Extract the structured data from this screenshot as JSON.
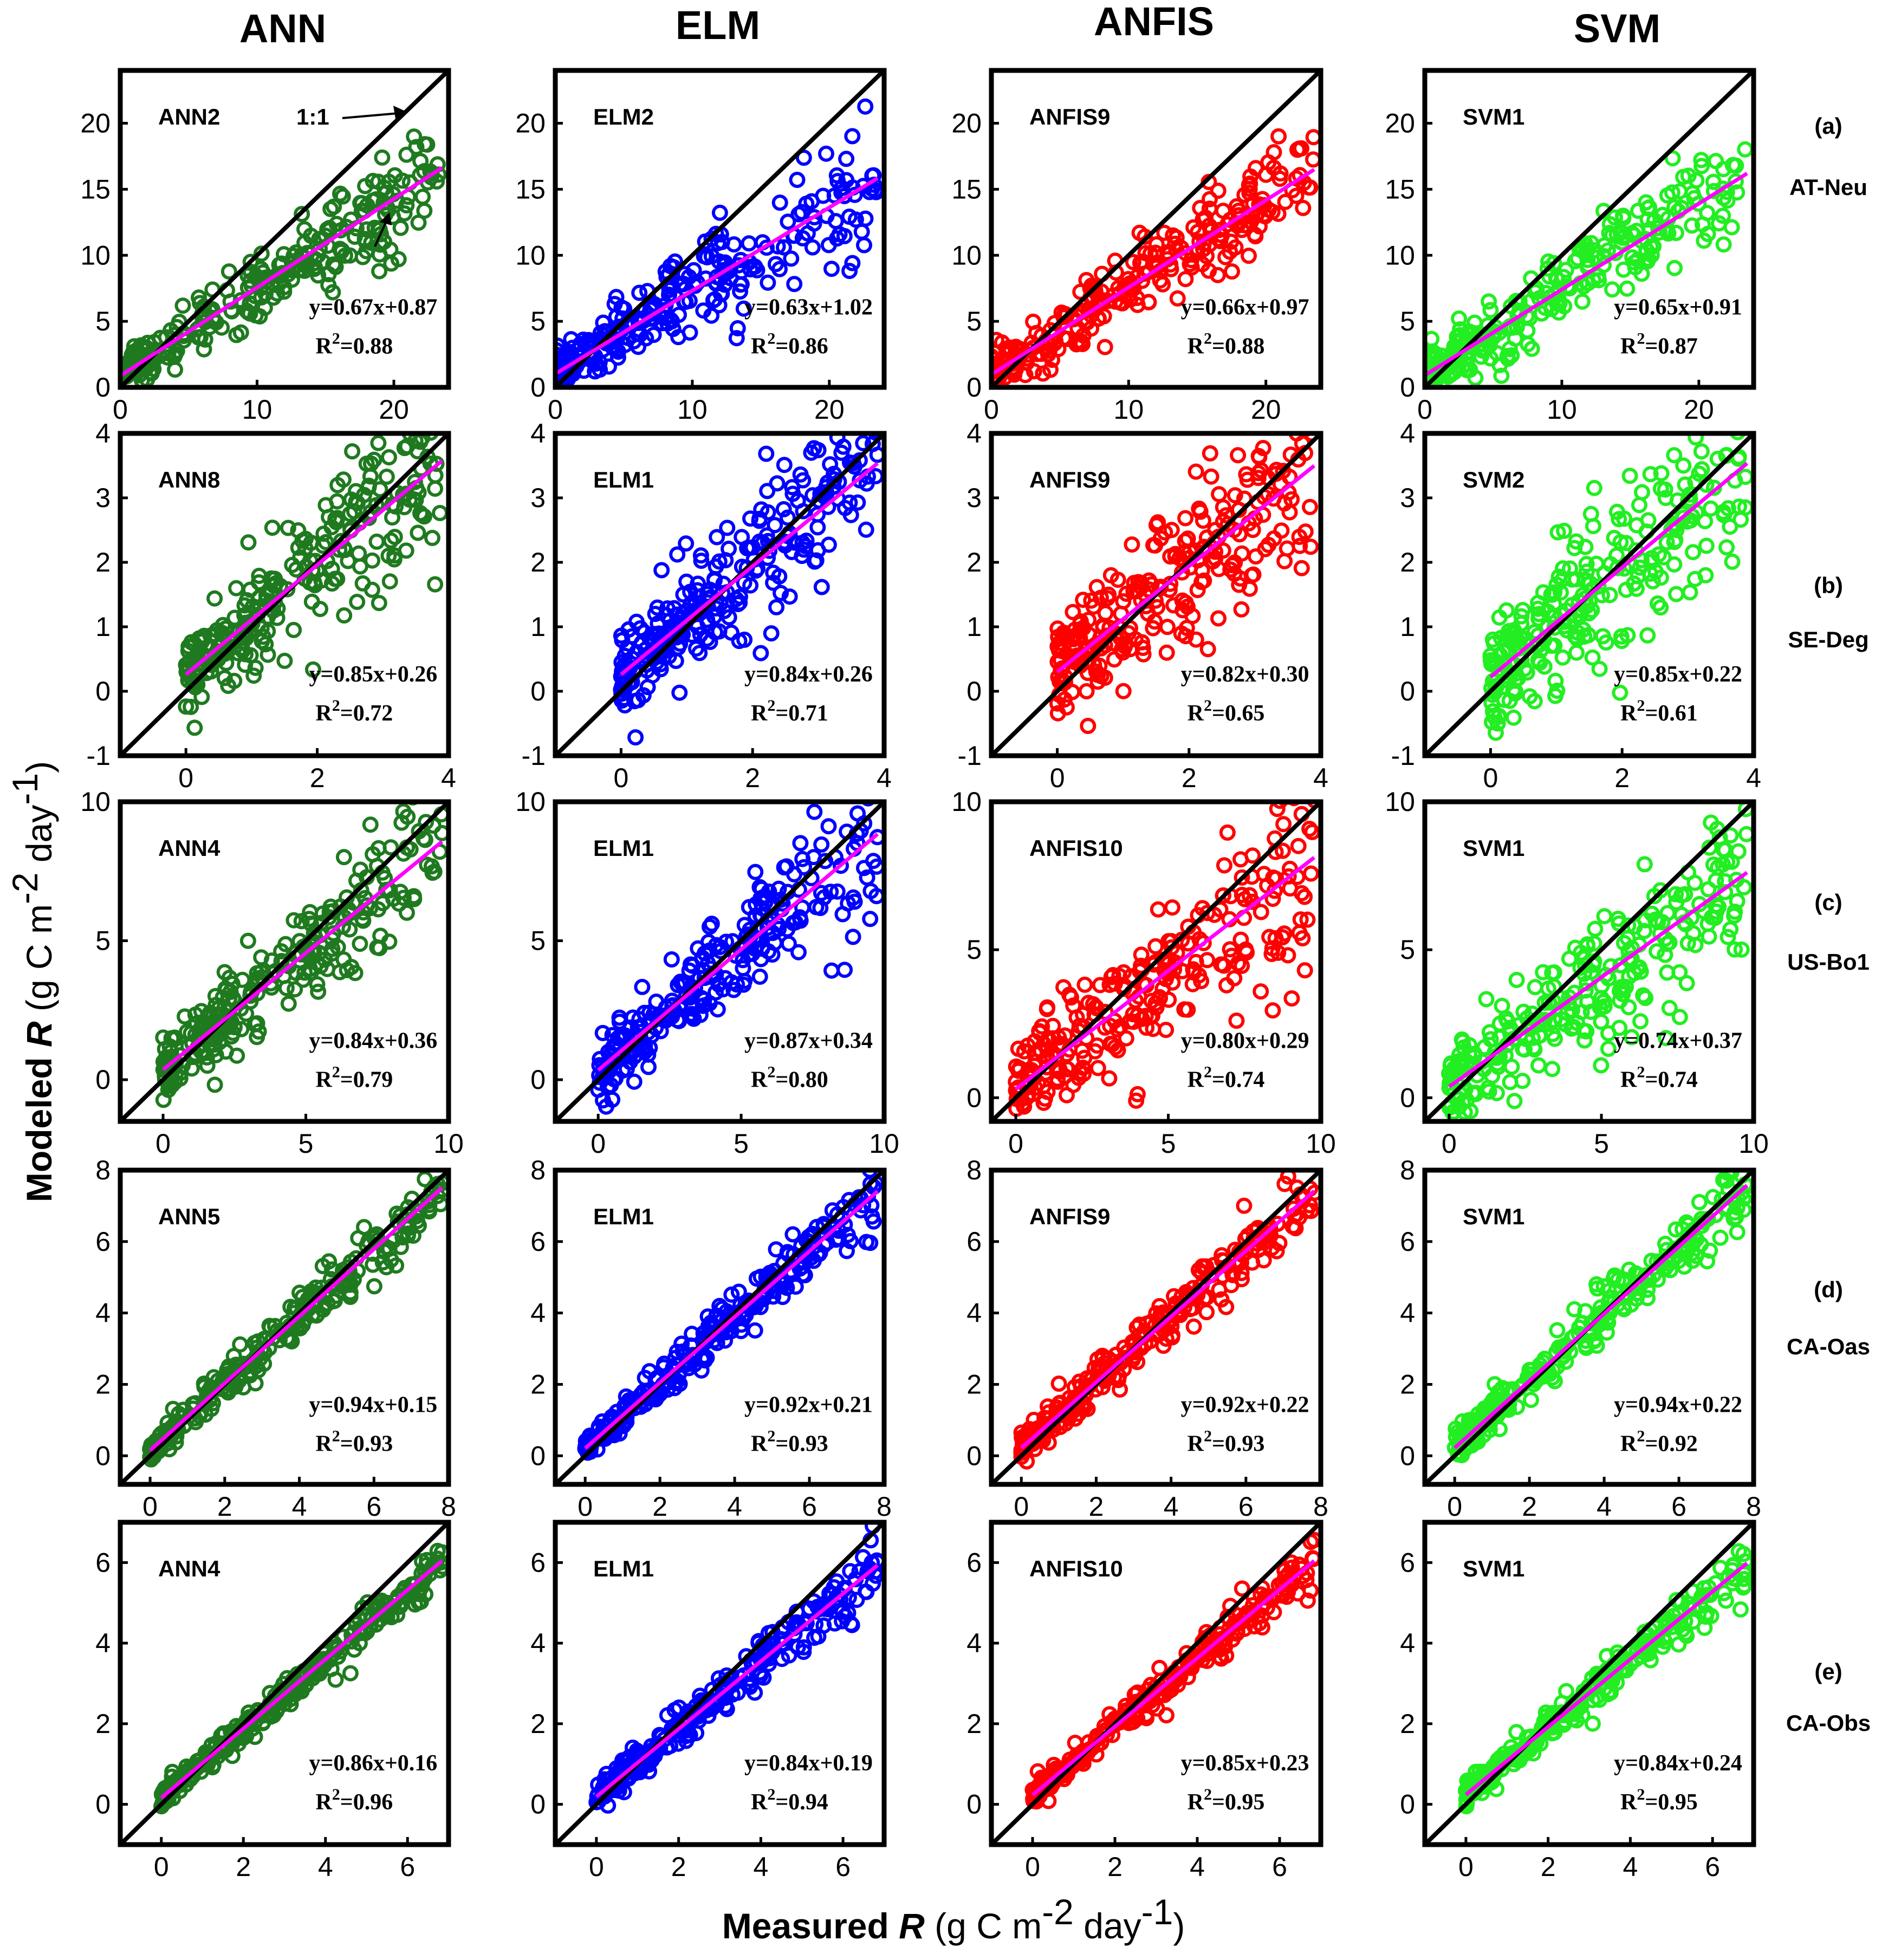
{
  "labels": {
    "columns": [
      "ANN",
      "ELM",
      "ANFIS",
      "SVM"
    ],
    "ylabel_pre": "Modeled ",
    "ylabel_var": "R",
    "ylabel_unit": " (g C m",
    "ylabel_exp1": "-2",
    "ylabel_mid": " day",
    "ylabel_exp2": "-1",
    "ylabel_end": ")",
    "xlabel_pre": "Measured ",
    "xlabel_var": "R",
    "xlabel_unit": " (g C m",
    "xlabel_exp1": "-2",
    "xlabel_mid": " day",
    "xlabel_exp2": "-1",
    "xlabel_end": ")",
    "one_to_one": "1:1"
  },
  "colors": {
    "ANN": "#1f7a1f",
    "ELM": "#0000ff",
    "ANFIS": "#ff0000",
    "SVM": "#22ee22",
    "fit": "#ff00ff",
    "one_to_one": "#000000"
  },
  "chart_data": [
    {
      "type": "scatter",
      "row": "(a)",
      "site": "AT-Neu",
      "column": "ANN",
      "model": "ANN2",
      "equation": "y=0.67x+0.87",
      "r2_label": "R",
      "r2_sup": "2",
      "r2_value": "=0.88",
      "slope": 0.67,
      "intercept": 0.87,
      "xlim": [
        0,
        24
      ],
      "ylim": [
        0,
        24
      ],
      "xticks": [
        0,
        10,
        20
      ],
      "yticks": [
        0,
        5,
        10,
        15,
        20
      ]
    },
    {
      "type": "scatter",
      "row": "(a)",
      "site": "AT-Neu",
      "column": "ELM",
      "model": "ELM2",
      "equation": "y=0.63x+1.02",
      "r2_label": "R",
      "r2_sup": "2",
      "r2_value": "=0.86",
      "slope": 0.63,
      "intercept": 1.02,
      "xlim": [
        0,
        24
      ],
      "ylim": [
        0,
        24
      ],
      "xticks": [
        0,
        10,
        20
      ],
      "yticks": [
        0,
        5,
        10,
        15,
        20
      ]
    },
    {
      "type": "scatter",
      "row": "(a)",
      "site": "AT-Neu",
      "column": "ANFIS",
      "model": "ANFIS9",
      "equation": "y=0.66x+0.97",
      "r2_label": "R",
      "r2_sup": "2",
      "r2_value": "=0.88",
      "slope": 0.66,
      "intercept": 0.97,
      "xlim": [
        0,
        24
      ],
      "ylim": [
        0,
        24
      ],
      "xticks": [
        0,
        10,
        20
      ],
      "yticks": [
        0,
        5,
        10,
        15,
        20
      ]
    },
    {
      "type": "scatter",
      "row": "(a)",
      "site": "AT-Neu",
      "column": "SVM",
      "model": "SVM1",
      "equation": "y=0.65x+0.91",
      "r2_label": "R",
      "r2_sup": "2",
      "r2_value": "=0.87",
      "slope": 0.65,
      "intercept": 0.91,
      "xlim": [
        0,
        24
      ],
      "ylim": [
        0,
        24
      ],
      "xticks": [
        0,
        10,
        20
      ],
      "yticks": [
        0,
        5,
        10,
        15,
        20
      ]
    },
    {
      "type": "scatter",
      "row": "(b)",
      "site": "SE-Deg",
      "column": "ANN",
      "model": "ANN8",
      "equation": "y=0.85x+0.26",
      "r2_label": "R",
      "r2_sup": "2",
      "r2_value": "=0.72",
      "slope": 0.85,
      "intercept": 0.26,
      "xlim": [
        -1,
        4
      ],
      "ylim": [
        -1,
        4
      ],
      "xticks": [
        0,
        2,
        4
      ],
      "yticks": [
        -1,
        0,
        1,
        2,
        3,
        4
      ]
    },
    {
      "type": "scatter",
      "row": "(b)",
      "site": "SE-Deg",
      "column": "ELM",
      "model": "ELM1",
      "equation": "y=0.84x+0.26",
      "r2_label": "R",
      "r2_sup": "2",
      "r2_value": "=0.71",
      "slope": 0.84,
      "intercept": 0.26,
      "xlim": [
        -1,
        4
      ],
      "ylim": [
        -1,
        4
      ],
      "xticks": [
        0,
        2,
        4
      ],
      "yticks": [
        -1,
        0,
        1,
        2,
        3,
        4
      ]
    },
    {
      "type": "scatter",
      "row": "(b)",
      "site": "SE-Deg",
      "column": "ANFIS",
      "model": "ANFIS9",
      "equation": "y=0.82x+0.30",
      "r2_label": "R",
      "r2_sup": "2",
      "r2_value": "=0.65",
      "slope": 0.82,
      "intercept": 0.3,
      "xlim": [
        -1,
        4
      ],
      "ylim": [
        -1,
        4
      ],
      "xticks": [
        0,
        2,
        4
      ],
      "yticks": [
        -1,
        0,
        1,
        2,
        3,
        4
      ]
    },
    {
      "type": "scatter",
      "row": "(b)",
      "site": "SE-Deg",
      "column": "SVM",
      "model": "SVM2",
      "equation": "y=0.85x+0.22",
      "r2_label": "R",
      "r2_sup": "2",
      "r2_value": "=0.61",
      "slope": 0.85,
      "intercept": 0.22,
      "xlim": [
        -1,
        4
      ],
      "ylim": [
        -1,
        4
      ],
      "xticks": [
        0,
        2,
        4
      ],
      "yticks": [
        -1,
        0,
        1,
        2,
        3,
        4
      ]
    },
    {
      "type": "scatter",
      "row": "(c)",
      "site": "US-Bo1",
      "column": "ANN",
      "model": "ANN4",
      "equation": "y=0.84x+0.36",
      "r2_label": "R",
      "r2_sup": "2",
      "r2_value": "=0.79",
      "slope": 0.84,
      "intercept": 0.36,
      "xlim": [
        -1.5,
        10
      ],
      "ylim": [
        -1.5,
        10
      ],
      "xticks": [
        0,
        5,
        10
      ],
      "yticks": [
        0,
        5,
        10
      ]
    },
    {
      "type": "scatter",
      "row": "(c)",
      "site": "US-Bo1",
      "column": "ELM",
      "model": "ELM1",
      "equation": "y=0.87x+0.34",
      "r2_label": "R",
      "r2_sup": "2",
      "r2_value": "=0.80",
      "slope": 0.87,
      "intercept": 0.34,
      "xlim": [
        -1.5,
        10
      ],
      "ylim": [
        -1.5,
        10
      ],
      "xticks": [
        0,
        5,
        10
      ],
      "yticks": [
        0,
        5,
        10
      ]
    },
    {
      "type": "scatter",
      "row": "(c)",
      "site": "US-Bo1",
      "column": "ANFIS",
      "model": "ANFIS10",
      "equation": "y=0.80x+0.29",
      "r2_label": "R",
      "r2_sup": "2",
      "r2_value": "=0.74",
      "slope": 0.8,
      "intercept": 0.29,
      "xlim": [
        -0.8,
        10
      ],
      "ylim": [
        -0.8,
        10
      ],
      "xticks": [
        0,
        5,
        10
      ],
      "yticks": [
        0,
        5,
        10
      ]
    },
    {
      "type": "scatter",
      "row": "(c)",
      "site": "US-Bo1",
      "column": "SVM",
      "model": "SVM1",
      "equation": "y=0.74x+0.37",
      "r2_label": "R",
      "r2_sup": "2",
      "r2_value": "=0.74",
      "slope": 0.74,
      "intercept": 0.37,
      "xlim": [
        -0.8,
        10
      ],
      "ylim": [
        -0.8,
        10
      ],
      "xticks": [
        0,
        5,
        10
      ],
      "yticks": [
        0,
        5,
        10
      ]
    },
    {
      "type": "scatter",
      "row": "(d)",
      "site": "CA-Oas",
      "column": "ANN",
      "model": "ANN5",
      "equation": "y=0.94x+0.15",
      "r2_label": "R",
      "r2_sup": "2",
      "r2_value": "=0.93",
      "slope": 0.94,
      "intercept": 0.15,
      "xlim": [
        -0.8,
        8
      ],
      "ylim": [
        -0.8,
        8
      ],
      "xticks": [
        0,
        2,
        4,
        6,
        8
      ],
      "yticks": [
        0,
        2,
        4,
        6,
        8
      ]
    },
    {
      "type": "scatter",
      "row": "(d)",
      "site": "CA-Oas",
      "column": "ELM",
      "model": "ELM1",
      "equation": "y=0.92x+0.21",
      "r2_label": "R",
      "r2_sup": "2",
      "r2_value": "=0.93",
      "slope": 0.92,
      "intercept": 0.21,
      "xlim": [
        -0.8,
        8
      ],
      "ylim": [
        -0.8,
        8
      ],
      "xticks": [
        0,
        2,
        4,
        6,
        8
      ],
      "yticks": [
        0,
        2,
        4,
        6,
        8
      ]
    },
    {
      "type": "scatter",
      "row": "(d)",
      "site": "CA-Oas",
      "column": "ANFIS",
      "model": "ANFIS9",
      "equation": "y=0.92x+0.22",
      "r2_label": "R",
      "r2_sup": "2",
      "r2_value": "=0.93",
      "slope": 0.92,
      "intercept": 0.22,
      "xlim": [
        -0.8,
        8
      ],
      "ylim": [
        -0.8,
        8
      ],
      "xticks": [
        0,
        2,
        4,
        6,
        8
      ],
      "yticks": [
        0,
        2,
        4,
        6,
        8
      ]
    },
    {
      "type": "scatter",
      "row": "(d)",
      "site": "CA-Oas",
      "column": "SVM",
      "model": "SVM1",
      "equation": "y=0.94x+0.22",
      "r2_label": "R",
      "r2_sup": "2",
      "r2_value": "=0.92",
      "slope": 0.94,
      "intercept": 0.22,
      "xlim": [
        -0.8,
        8
      ],
      "ylim": [
        -0.8,
        8
      ],
      "xticks": [
        0,
        2,
        4,
        6,
        8
      ],
      "yticks": [
        0,
        2,
        4,
        6,
        8
      ]
    },
    {
      "type": "scatter",
      "row": "(e)",
      "site": "CA-Obs",
      "column": "ANN",
      "model": "ANN4",
      "equation": "y=0.86x+0.16",
      "r2_label": "R",
      "r2_sup": "2",
      "r2_value": "=0.96",
      "slope": 0.86,
      "intercept": 0.16,
      "xlim": [
        -1,
        7
      ],
      "ylim": [
        -1,
        7
      ],
      "xticks": [
        0,
        2,
        4,
        6
      ],
      "yticks": [
        0,
        2,
        4,
        6
      ]
    },
    {
      "type": "scatter",
      "row": "(e)",
      "site": "CA-Obs",
      "column": "ELM",
      "model": "ELM1",
      "equation": "y=0.84x+0.19",
      "r2_label": "R",
      "r2_sup": "2",
      "r2_value": "=0.94",
      "slope": 0.84,
      "intercept": 0.19,
      "xlim": [
        -1,
        7
      ],
      "ylim": [
        -1,
        7
      ],
      "xticks": [
        0,
        2,
        4,
        6
      ],
      "yticks": [
        0,
        2,
        4,
        6
      ]
    },
    {
      "type": "scatter",
      "row": "(e)",
      "site": "CA-Obs",
      "column": "ANFIS",
      "model": "ANFIS10",
      "equation": "y=0.85x+0.23",
      "r2_label": "R",
      "r2_sup": "2",
      "r2_value": "=0.95",
      "slope": 0.85,
      "intercept": 0.23,
      "xlim": [
        -1,
        7
      ],
      "ylim": [
        -1,
        7
      ],
      "xticks": [
        0,
        2,
        4,
        6
      ],
      "yticks": [
        0,
        2,
        4,
        6
      ]
    },
    {
      "type": "scatter",
      "row": "(e)",
      "site": "CA-Obs",
      "column": "SVM",
      "model": "SVM1",
      "equation": "y=0.84x+0.24",
      "r2_label": "R",
      "r2_sup": "2",
      "r2_value": "=0.95",
      "slope": 0.84,
      "intercept": 0.24,
      "xlim": [
        -1,
        7
      ],
      "ylim": [
        -1,
        7
      ],
      "xticks": [
        0,
        2,
        4,
        6
      ],
      "yticks": [
        0,
        2,
        4,
        6
      ]
    }
  ]
}
